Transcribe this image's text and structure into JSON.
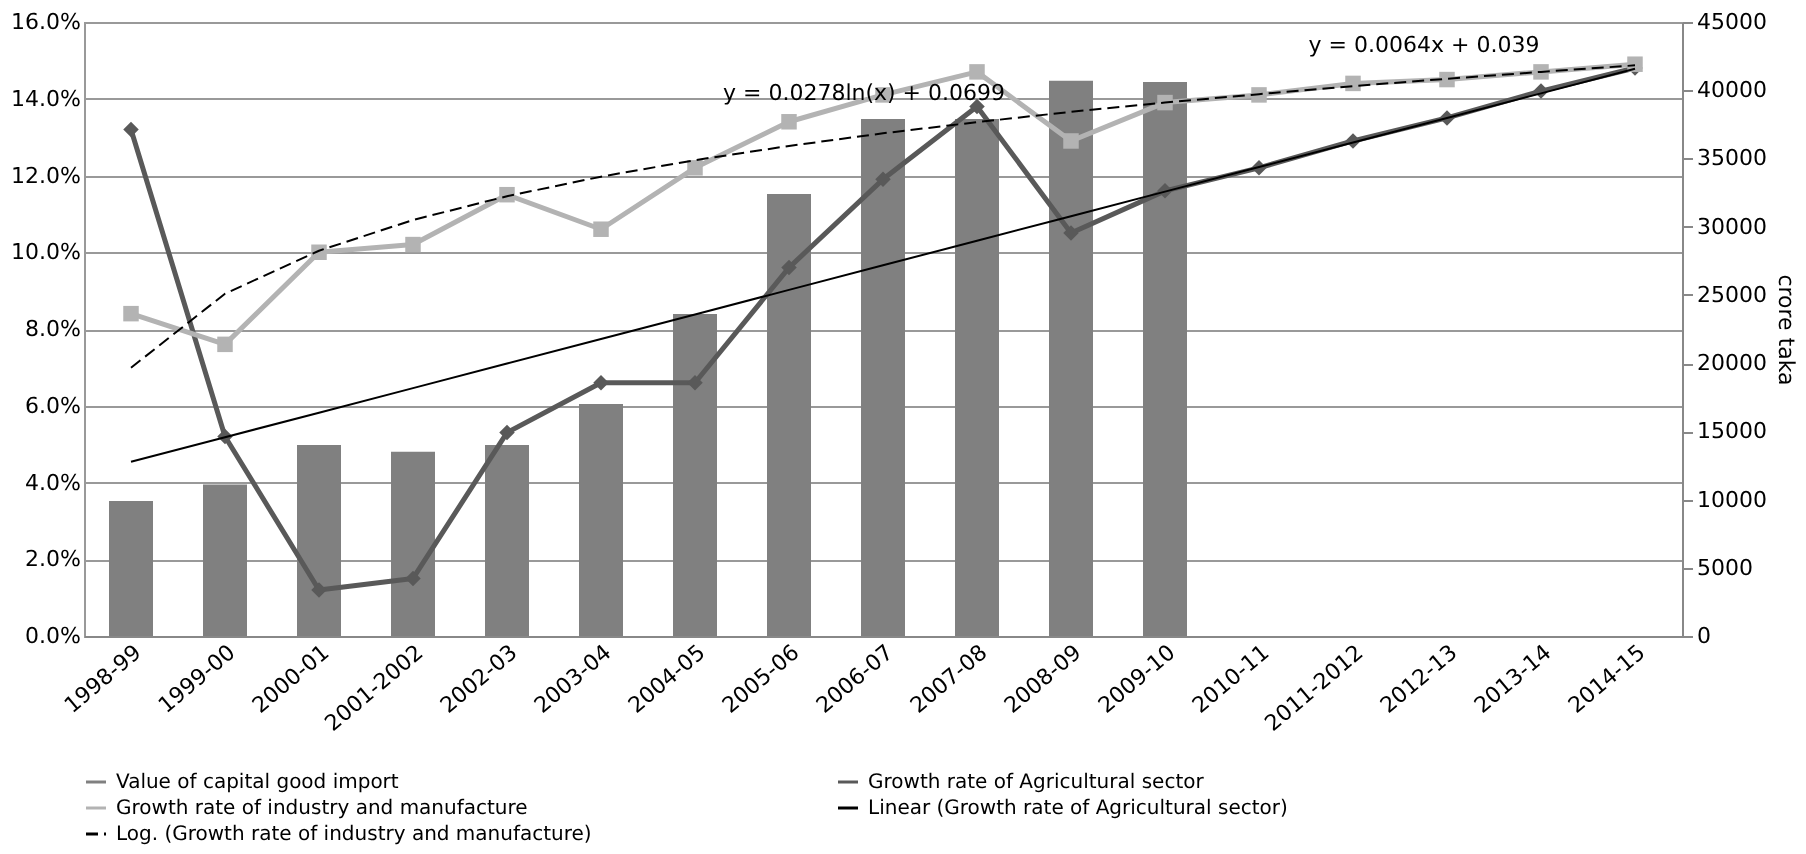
{
  "chart_data": {
    "type": "bar",
    "categories": [
      "1998-99",
      "1999-00",
      "2000-01",
      "2001-2002",
      "2002-03",
      "2003-04",
      "2004-05",
      "2005-06",
      "2006-07",
      "2007-08",
      "2008-09",
      "2009-10",
      "2010-11",
      "2011-2012",
      "2012-13",
      "2013-14",
      "2014-15"
    ],
    "series": [
      {
        "name": "Value of capital good import",
        "axis": "y2",
        "color": "#808080",
        "values": [
          9900,
          11100,
          14000,
          13500,
          14000,
          17000,
          23600,
          32400,
          37900,
          37900,
          40700,
          40600,
          null,
          null,
          null,
          null,
          null
        ]
      },
      {
        "name": "Growth rate of Agricultural sector",
        "type": "line",
        "marker": "diamond",
        "color": "#595959",
        "values": [
          13.2,
          5.2,
          1.2,
          1.5,
          5.3,
          6.6,
          6.6,
          9.6,
          11.9,
          13.8,
          10.5,
          11.6,
          12.2,
          12.9,
          13.5,
          14.2,
          14.8
        ]
      },
      {
        "name": "Growth rate of industry and manufacture",
        "type": "line",
        "marker": "square",
        "color": "#b3b3b3",
        "values": [
          8.4,
          7.6,
          10.0,
          10.2,
          11.5,
          10.6,
          12.2,
          13.4,
          14.1,
          14.7,
          12.9,
          13.9,
          14.1,
          14.4,
          14.5,
          14.7,
          14.9
        ]
      },
      {
        "name": "Linear (Growth rate of Agricultural sector)",
        "type": "line",
        "marker": "none",
        "line_style": "solid",
        "color": "#000000",
        "values": [
          4.54,
          5.18,
          5.82,
          6.46,
          7.1,
          7.74,
          8.38,
          9.02,
          9.66,
          10.3,
          10.94,
          11.58,
          12.22,
          12.86,
          13.5,
          14.14,
          14.78
        ]
      },
      {
        "name": "Log. (Growth rate of industry and manufacture)",
        "type": "line",
        "marker": "none",
        "line_style": "dashed",
        "color": "#000000",
        "values": [
          6.99,
          8.92,
          10.04,
          10.84,
          11.46,
          11.97,
          12.4,
          12.77,
          13.1,
          13.39,
          13.66,
          13.9,
          14.12,
          14.33,
          14.52,
          14.7,
          14.87
        ]
      }
    ],
    "ylim": [
      0,
      16
    ],
    "yticks": [
      {
        "value": 0,
        "label": "0.0%"
      },
      {
        "value": 2,
        "label": "2.0%"
      },
      {
        "value": 4,
        "label": "4.0%"
      },
      {
        "value": 6,
        "label": "6.0%"
      },
      {
        "value": 8,
        "label": "8.0%"
      },
      {
        "value": 10,
        "label": "10.0%"
      },
      {
        "value": 12,
        "label": "12.0%"
      },
      {
        "value": 14,
        "label": "14.0%"
      },
      {
        "value": 16,
        "label": "16.0%"
      }
    ],
    "y2lim": [
      0,
      45000
    ],
    "y2ticks": [
      0,
      5000,
      10000,
      15000,
      20000,
      25000,
      30000,
      35000,
      40000,
      45000
    ],
    "y2label": "crore taka",
    "grid": "y",
    "legend": "bottom",
    "annotations": [
      "y = 0.0278ln(x) + 0.0699",
      "y = 0.0064x + 0.039"
    ]
  }
}
